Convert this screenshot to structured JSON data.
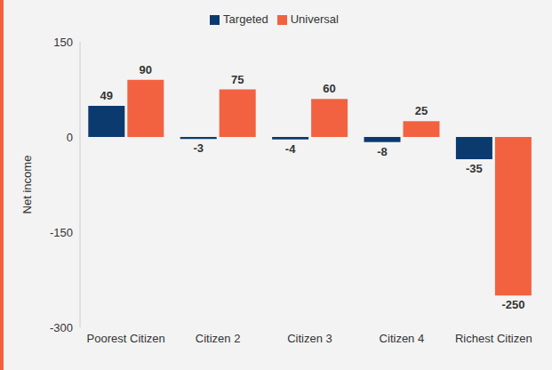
{
  "chart_data": {
    "type": "bar",
    "categories": [
      "Poorest Citizen",
      "Citizen 2",
      "Citizen 3",
      "Citizen 4",
      "Richest Citizen"
    ],
    "series": [
      {
        "name": "Targeted",
        "color": "#0b3a6e",
        "values": [
          49,
          -3,
          -4,
          -8,
          -35
        ]
      },
      {
        "name": "Universal",
        "color": "#f26241",
        "values": [
          90,
          75,
          60,
          25,
          -250
        ]
      }
    ],
    "ylabel": "Net income",
    "ylim": [
      -300,
      150
    ],
    "yticks": [
      -300,
      -150,
      0,
      150
    ],
    "grid": false,
    "legend": "top",
    "data_labels": true
  }
}
